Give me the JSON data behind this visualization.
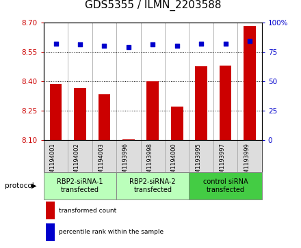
{
  "title": "GDS5355 / ILMN_2203588",
  "samples": [
    "GSM1194001",
    "GSM1194002",
    "GSM1194003",
    "GSM1193996",
    "GSM1193998",
    "GSM1194000",
    "GSM1193995",
    "GSM1193997",
    "GSM1193999"
  ],
  "bar_values": [
    8.385,
    8.365,
    8.335,
    8.105,
    8.4,
    8.27,
    8.475,
    8.48,
    8.68
  ],
  "dot_values": [
    82,
    81,
    80,
    79,
    81,
    80,
    82,
    82,
    84
  ],
  "ylim": [
    8.1,
    8.7
  ],
  "yticks": [
    8.1,
    8.25,
    8.4,
    8.55,
    8.7
  ],
  "y2lim": [
    0,
    100
  ],
  "y2ticks": [
    0,
    25,
    50,
    75,
    100
  ],
  "y2ticklabels": [
    "0",
    "25",
    "50",
    "75",
    "100%"
  ],
  "bar_color": "#cc0000",
  "dot_color": "#0000cc",
  "groups": [
    {
      "label": "RBP2-siRNA-1\ntransfected",
      "start": 0,
      "end": 3,
      "color": "#bbffbb"
    },
    {
      "label": "RBP2-siRNA-2\ntransfected",
      "start": 3,
      "end": 6,
      "color": "#bbffbb"
    },
    {
      "label": "control siRNA\ntransfected",
      "start": 6,
      "end": 9,
      "color": "#44cc44"
    }
  ],
  "protocol_label": "protocol",
  "legend_bar_label": "transformed count",
  "legend_dot_label": "percentile rank within the sample",
  "sample_bg_color": "#dddddd",
  "plot_bg": "#ffffff",
  "title_fontsize": 11,
  "axis_color_red": "#cc0000",
  "axis_color_blue": "#0000cc",
  "grid_color": "black",
  "divider_color": "#999999"
}
